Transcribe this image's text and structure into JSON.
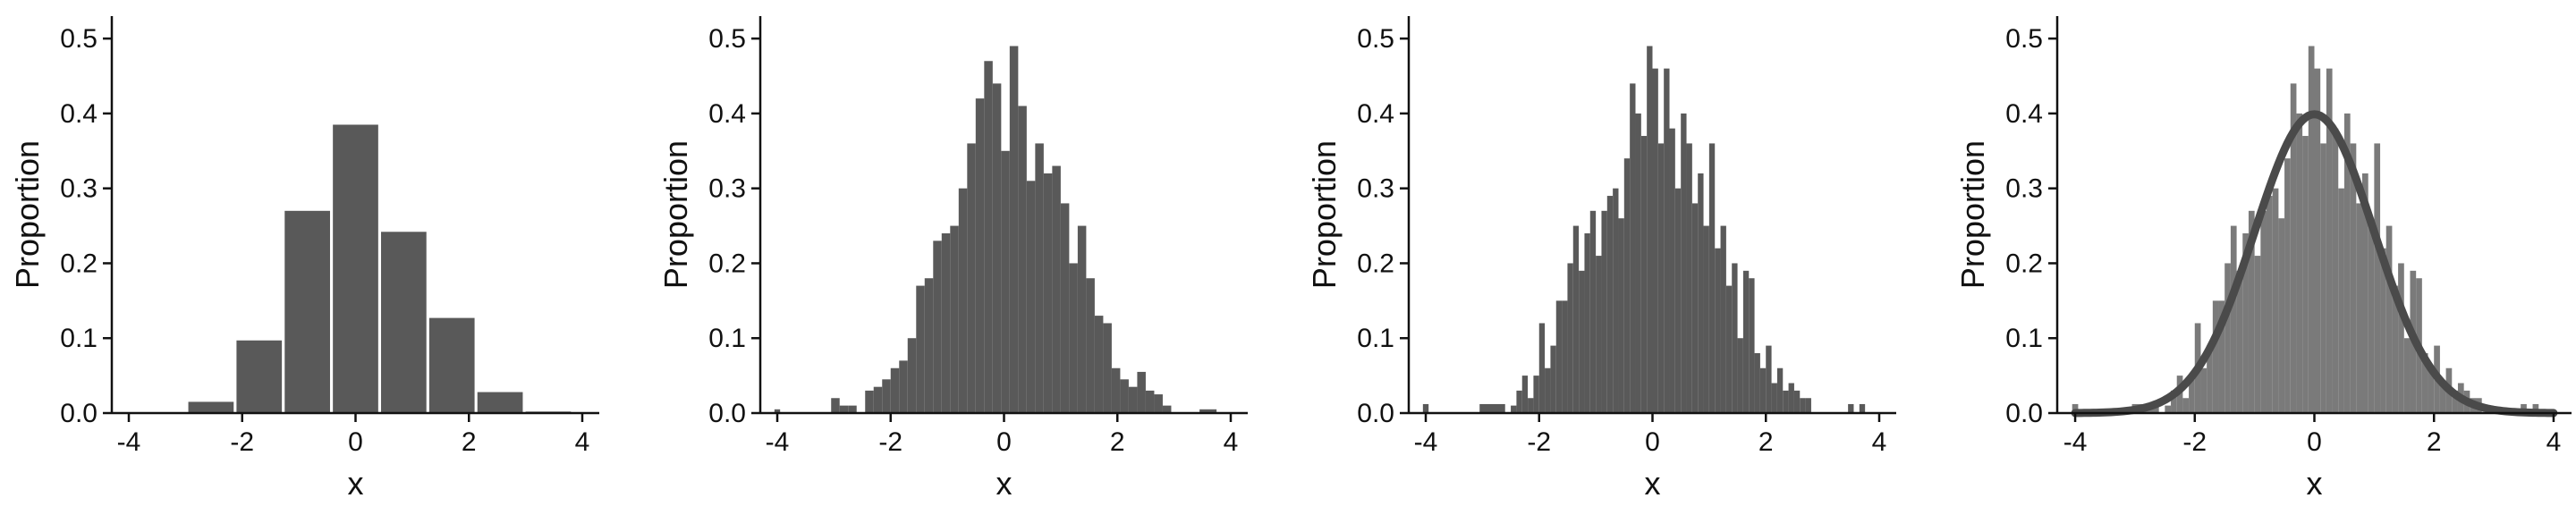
{
  "colors": {
    "bar_dark": "#595959",
    "bar_light": "#7a7a7a",
    "curve": "#4a4a4a",
    "axis": "#111111"
  },
  "chart_data": [
    {
      "type": "bar",
      "xlabel": "x",
      "ylabel": "Proportion",
      "xlim": [
        -4.3,
        4.3
      ],
      "ylim": [
        0,
        0.53
      ],
      "xticks": [
        -4,
        -2,
        0,
        2,
        4
      ],
      "yticks": [
        0.0,
        0.1,
        0.2,
        0.3,
        0.4,
        0.5
      ],
      "bin_width": 0.8,
      "bins": [
        {
          "x0": -4.0,
          "value": 0.001
        },
        {
          "x0": -3.2,
          "value": 0.001
        },
        {
          "x0": -2.95,
          "value": 0.015
        },
        {
          "x0": -2.1,
          "value": 0.097
        },
        {
          "x0": -1.25,
          "value": 0.27
        },
        {
          "x0": -0.4,
          "value": 0.385
        },
        {
          "x0": 0.45,
          "value": 0.242
        },
        {
          "x0": 1.3,
          "value": 0.127
        },
        {
          "x0": 2.15,
          "value": 0.028
        },
        {
          "x0": 3.0,
          "value": 0.002
        }
      ]
    },
    {
      "type": "bar",
      "xlabel": "x",
      "ylabel": "Proportion",
      "xlim": [
        -4.3,
        4.3
      ],
      "ylim": [
        0,
        0.53
      ],
      "xticks": [
        -4,
        -2,
        0,
        2,
        4
      ],
      "yticks": [
        0.0,
        0.1,
        0.2,
        0.3,
        0.4,
        0.5
      ],
      "bins": [
        {
          "x0": -4.05,
          "x1": -3.95,
          "value": 0.005
        },
        {
          "x0": -3.05,
          "x1": -2.9,
          "value": 0.02
        },
        {
          "x0": -2.9,
          "x1": -2.75,
          "value": 0.01
        },
        {
          "x0": -2.75,
          "x1": -2.6,
          "value": 0.01
        },
        {
          "x0": -2.45,
          "x1": -2.3,
          "value": 0.03
        },
        {
          "x0": -2.3,
          "x1": -2.15,
          "value": 0.035
        },
        {
          "x0": -2.15,
          "x1": -2.0,
          "value": 0.045
        },
        {
          "x0": -2.0,
          "x1": -1.85,
          "value": 0.06
        },
        {
          "x0": -1.85,
          "x1": -1.7,
          "value": 0.07
        },
        {
          "x0": -1.7,
          "x1": -1.55,
          "value": 0.1
        },
        {
          "x0": -1.55,
          "x1": -1.4,
          "value": 0.17
        },
        {
          "x0": -1.4,
          "x1": -1.25,
          "value": 0.18
        },
        {
          "x0": -1.25,
          "x1": -1.1,
          "value": 0.23
        },
        {
          "x0": -1.1,
          "x1": -0.95,
          "value": 0.24
        },
        {
          "x0": -0.95,
          "x1": -0.8,
          "value": 0.25
        },
        {
          "x0": -0.8,
          "x1": -0.65,
          "value": 0.3
        },
        {
          "x0": -0.65,
          "x1": -0.5,
          "value": 0.36
        },
        {
          "x0": -0.5,
          "x1": -0.35,
          "value": 0.42
        },
        {
          "x0": -0.35,
          "x1": -0.2,
          "value": 0.47
        },
        {
          "x0": -0.2,
          "x1": -0.05,
          "value": 0.44
        },
        {
          "x0": -0.05,
          "x1": 0.1,
          "value": 0.35
        },
        {
          "x0": 0.1,
          "x1": 0.25,
          "value": 0.49
        },
        {
          "x0": 0.25,
          "x1": 0.4,
          "value": 0.41
        },
        {
          "x0": 0.4,
          "x1": 0.55,
          "value": 0.31
        },
        {
          "x0": 0.55,
          "x1": 0.7,
          "value": 0.36
        },
        {
          "x0": 0.7,
          "x1": 0.85,
          "value": 0.32
        },
        {
          "x0": 0.85,
          "x1": 1.0,
          "value": 0.33
        },
        {
          "x0": 1.0,
          "x1": 1.15,
          "value": 0.28
        },
        {
          "x0": 1.15,
          "x1": 1.3,
          "value": 0.2
        },
        {
          "x0": 1.3,
          "x1": 1.45,
          "value": 0.25
        },
        {
          "x0": 1.45,
          "x1": 1.6,
          "value": 0.18
        },
        {
          "x0": 1.6,
          "x1": 1.75,
          "value": 0.13
        },
        {
          "x0": 1.75,
          "x1": 1.9,
          "value": 0.12
        },
        {
          "x0": 1.9,
          "x1": 2.05,
          "value": 0.06
        },
        {
          "x0": 2.05,
          "x1": 2.2,
          "value": 0.045
        },
        {
          "x0": 2.2,
          "x1": 2.35,
          "value": 0.035
        },
        {
          "x0": 2.35,
          "x1": 2.5,
          "value": 0.055
        },
        {
          "x0": 2.5,
          "x1": 2.65,
          "value": 0.03
        },
        {
          "x0": 2.65,
          "x1": 2.8,
          "value": 0.025
        },
        {
          "x0": 2.8,
          "x1": 2.95,
          "value": 0.01
        },
        {
          "x0": 3.45,
          "x1": 3.75,
          "value": 0.005
        }
      ]
    },
    {
      "type": "bar",
      "xlabel": "x",
      "ylabel": "Proportion",
      "xlim": [
        -4.3,
        4.3
      ],
      "ylim": [
        0,
        0.53
      ],
      "xticks": [
        -4,
        -2,
        0,
        2,
        4
      ],
      "yticks": [
        0.0,
        0.1,
        0.2,
        0.3,
        0.4,
        0.5
      ],
      "bins": [
        {
          "x0": -4.05,
          "x1": -3.95,
          "value": 0.012
        },
        {
          "x0": -3.05,
          "x1": -2.6,
          "value": 0.012
        },
        {
          "x0": -2.5,
          "x1": -2.4,
          "value": 0.01
        },
        {
          "x0": -2.4,
          "x1": -2.3,
          "value": 0.03
        },
        {
          "x0": -2.3,
          "x1": -2.2,
          "value": 0.05
        },
        {
          "x0": -2.2,
          "x1": -2.1,
          "value": 0.02
        },
        {
          "x0": -2.1,
          "x1": -2.0,
          "value": 0.05
        },
        {
          "x0": -2.0,
          "x1": -1.9,
          "value": 0.12
        },
        {
          "x0": -1.9,
          "x1": -1.8,
          "value": 0.06
        },
        {
          "x0": -1.8,
          "x1": -1.7,
          "value": 0.09
        },
        {
          "x0": -1.7,
          "x1": -1.6,
          "value": 0.15
        },
        {
          "x0": -1.6,
          "x1": -1.5,
          "value": 0.15
        },
        {
          "x0": -1.5,
          "x1": -1.4,
          "value": 0.2
        },
        {
          "x0": -1.4,
          "x1": -1.3,
          "value": 0.25
        },
        {
          "x0": -1.3,
          "x1": -1.2,
          "value": 0.19
        },
        {
          "x0": -1.2,
          "x1": -1.1,
          "value": 0.24
        },
        {
          "x0": -1.1,
          "x1": -1.0,
          "value": 0.27
        },
        {
          "x0": -1.0,
          "x1": -0.9,
          "value": 0.21
        },
        {
          "x0": -0.9,
          "x1": -0.8,
          "value": 0.27
        },
        {
          "x0": -0.8,
          "x1": -0.7,
          "value": 0.29
        },
        {
          "x0": -0.7,
          "x1": -0.6,
          "value": 0.3
        },
        {
          "x0": -0.6,
          "x1": -0.5,
          "value": 0.26
        },
        {
          "x0": -0.5,
          "x1": -0.4,
          "value": 0.34
        },
        {
          "x0": -0.4,
          "x1": -0.3,
          "value": 0.44
        },
        {
          "x0": -0.3,
          "x1": -0.2,
          "value": 0.4
        },
        {
          "x0": -0.2,
          "x1": -0.1,
          "value": 0.37
        },
        {
          "x0": -0.1,
          "x1": 0.0,
          "value": 0.49
        },
        {
          "x0": 0.0,
          "x1": 0.1,
          "value": 0.46
        },
        {
          "x0": 0.1,
          "x1": 0.2,
          "value": 0.36
        },
        {
          "x0": 0.2,
          "x1": 0.3,
          "value": 0.46
        },
        {
          "x0": 0.3,
          "x1": 0.4,
          "value": 0.38
        },
        {
          "x0": 0.4,
          "x1": 0.5,
          "value": 0.3
        },
        {
          "x0": 0.5,
          "x1": 0.6,
          "value": 0.4
        },
        {
          "x0": 0.6,
          "x1": 0.7,
          "value": 0.36
        },
        {
          "x0": 0.7,
          "x1": 0.8,
          "value": 0.28
        },
        {
          "x0": 0.8,
          "x1": 0.9,
          "value": 0.32
        },
        {
          "x0": 0.9,
          "x1": 1.0,
          "value": 0.25
        },
        {
          "x0": 1.0,
          "x1": 1.1,
          "value": 0.36
        },
        {
          "x0": 1.1,
          "x1": 1.2,
          "value": 0.22
        },
        {
          "x0": 1.2,
          "x1": 1.3,
          "value": 0.25
        },
        {
          "x0": 1.3,
          "x1": 1.4,
          "value": 0.17
        },
        {
          "x0": 1.4,
          "x1": 1.5,
          "value": 0.2
        },
        {
          "x0": 1.5,
          "x1": 1.6,
          "value": 0.1
        },
        {
          "x0": 1.6,
          "x1": 1.7,
          "value": 0.19
        },
        {
          "x0": 1.7,
          "x1": 1.8,
          "value": 0.18
        },
        {
          "x0": 1.8,
          "x1": 1.9,
          "value": 0.08
        },
        {
          "x0": 1.9,
          "x1": 2.0,
          "value": 0.06
        },
        {
          "x0": 2.0,
          "x1": 2.1,
          "value": 0.09
        },
        {
          "x0": 2.1,
          "x1": 2.2,
          "value": 0.04
        },
        {
          "x0": 2.2,
          "x1": 2.3,
          "value": 0.06
        },
        {
          "x0": 2.3,
          "x1": 2.4,
          "value": 0.03
        },
        {
          "x0": 2.4,
          "x1": 2.5,
          "value": 0.04
        },
        {
          "x0": 2.5,
          "x1": 2.6,
          "value": 0.03
        },
        {
          "x0": 2.6,
          "x1": 2.7,
          "value": 0.02
        },
        {
          "x0": 2.7,
          "x1": 2.8,
          "value": 0.02
        },
        {
          "x0": 3.45,
          "x1": 3.55,
          "value": 0.012
        },
        {
          "x0": 3.65,
          "x1": 3.75,
          "value": 0.012
        }
      ]
    },
    {
      "type": "bar",
      "xlabel": "x",
      "ylabel": "Proportion",
      "xlim": [
        -4.3,
        4.3
      ],
      "ylim": [
        0,
        0.53
      ],
      "xticks": [
        -4,
        -2,
        0,
        2,
        4
      ],
      "yticks": [
        0.0,
        0.1,
        0.2,
        0.3,
        0.4,
        0.5
      ],
      "overlay": "normal-density-curve",
      "bins": [
        {
          "x0": -4.05,
          "x1": -3.95,
          "value": 0.012
        },
        {
          "x0": -3.05,
          "x1": -2.6,
          "value": 0.012
        },
        {
          "x0": -2.5,
          "x1": -2.4,
          "value": 0.01
        },
        {
          "x0": -2.4,
          "x1": -2.3,
          "value": 0.03
        },
        {
          "x0": -2.3,
          "x1": -2.2,
          "value": 0.05
        },
        {
          "x0": -2.2,
          "x1": -2.1,
          "value": 0.02
        },
        {
          "x0": -2.1,
          "x1": -2.0,
          "value": 0.05
        },
        {
          "x0": -2.0,
          "x1": -1.9,
          "value": 0.12
        },
        {
          "x0": -1.9,
          "x1": -1.8,
          "value": 0.06
        },
        {
          "x0": -1.8,
          "x1": -1.7,
          "value": 0.09
        },
        {
          "x0": -1.7,
          "x1": -1.6,
          "value": 0.15
        },
        {
          "x0": -1.6,
          "x1": -1.5,
          "value": 0.15
        },
        {
          "x0": -1.5,
          "x1": -1.4,
          "value": 0.2
        },
        {
          "x0": -1.4,
          "x1": -1.3,
          "value": 0.25
        },
        {
          "x0": -1.3,
          "x1": -1.2,
          "value": 0.19
        },
        {
          "x0": -1.2,
          "x1": -1.1,
          "value": 0.24
        },
        {
          "x0": -1.1,
          "x1": -1.0,
          "value": 0.27
        },
        {
          "x0": -1.0,
          "x1": -0.9,
          "value": 0.21
        },
        {
          "x0": -0.9,
          "x1": -0.8,
          "value": 0.27
        },
        {
          "x0": -0.8,
          "x1": -0.7,
          "value": 0.29
        },
        {
          "x0": -0.7,
          "x1": -0.6,
          "value": 0.3
        },
        {
          "x0": -0.6,
          "x1": -0.5,
          "value": 0.26
        },
        {
          "x0": -0.5,
          "x1": -0.4,
          "value": 0.34
        },
        {
          "x0": -0.4,
          "x1": -0.3,
          "value": 0.44
        },
        {
          "x0": -0.3,
          "x1": -0.2,
          "value": 0.4
        },
        {
          "x0": -0.2,
          "x1": -0.1,
          "value": 0.37
        },
        {
          "x0": -0.1,
          "x1": 0.0,
          "value": 0.49
        },
        {
          "x0": 0.0,
          "x1": 0.1,
          "value": 0.46
        },
        {
          "x0": 0.1,
          "x1": 0.2,
          "value": 0.36
        },
        {
          "x0": 0.2,
          "x1": 0.3,
          "value": 0.46
        },
        {
          "x0": 0.3,
          "x1": 0.4,
          "value": 0.38
        },
        {
          "x0": 0.4,
          "x1": 0.5,
          "value": 0.3
        },
        {
          "x0": 0.5,
          "x1": 0.6,
          "value": 0.4
        },
        {
          "x0": 0.6,
          "x1": 0.7,
          "value": 0.36
        },
        {
          "x0": 0.7,
          "x1": 0.8,
          "value": 0.28
        },
        {
          "x0": 0.8,
          "x1": 0.9,
          "value": 0.32
        },
        {
          "x0": 0.9,
          "x1": 1.0,
          "value": 0.25
        },
        {
          "x0": 1.0,
          "x1": 1.1,
          "value": 0.36
        },
        {
          "x0": 1.1,
          "x1": 1.2,
          "value": 0.22
        },
        {
          "x0": 1.2,
          "x1": 1.3,
          "value": 0.25
        },
        {
          "x0": 1.3,
          "x1": 1.4,
          "value": 0.17
        },
        {
          "x0": 1.4,
          "x1": 1.5,
          "value": 0.2
        },
        {
          "x0": 1.5,
          "x1": 1.6,
          "value": 0.1
        },
        {
          "x0": 1.6,
          "x1": 1.7,
          "value": 0.19
        },
        {
          "x0": 1.7,
          "x1": 1.8,
          "value": 0.18
        },
        {
          "x0": 1.8,
          "x1": 1.9,
          "value": 0.08
        },
        {
          "x0": 1.9,
          "x1": 2.0,
          "value": 0.06
        },
        {
          "x0": 2.0,
          "x1": 2.1,
          "value": 0.09
        },
        {
          "x0": 2.1,
          "x1": 2.2,
          "value": 0.04
        },
        {
          "x0": 2.2,
          "x1": 2.3,
          "value": 0.06
        },
        {
          "x0": 2.3,
          "x1": 2.4,
          "value": 0.03
        },
        {
          "x0": 2.4,
          "x1": 2.5,
          "value": 0.04
        },
        {
          "x0": 2.5,
          "x1": 2.6,
          "value": 0.03
        },
        {
          "x0": 2.6,
          "x1": 2.7,
          "value": 0.02
        },
        {
          "x0": 2.7,
          "x1": 2.8,
          "value": 0.02
        },
        {
          "x0": 3.45,
          "x1": 3.55,
          "value": 0.012
        },
        {
          "x0": 3.65,
          "x1": 3.75,
          "value": 0.012
        }
      ],
      "curve": {
        "name": "",
        "mean": 0,
        "sd": 1,
        "x": [
          -4.0,
          -3.5,
          -3.0,
          -2.5,
          -2.0,
          -1.5,
          -1.0,
          -0.5,
          0.0,
          0.5,
          1.0,
          1.5,
          2.0,
          2.5,
          3.0,
          3.5,
          4.0
        ],
        "y": [
          0.0001,
          0.0009,
          0.0044,
          0.0175,
          0.054,
          0.1295,
          0.242,
          0.352,
          0.3989,
          0.352,
          0.242,
          0.1295,
          0.054,
          0.0175,
          0.0044,
          0.0009,
          0.0001
        ]
      }
    }
  ]
}
